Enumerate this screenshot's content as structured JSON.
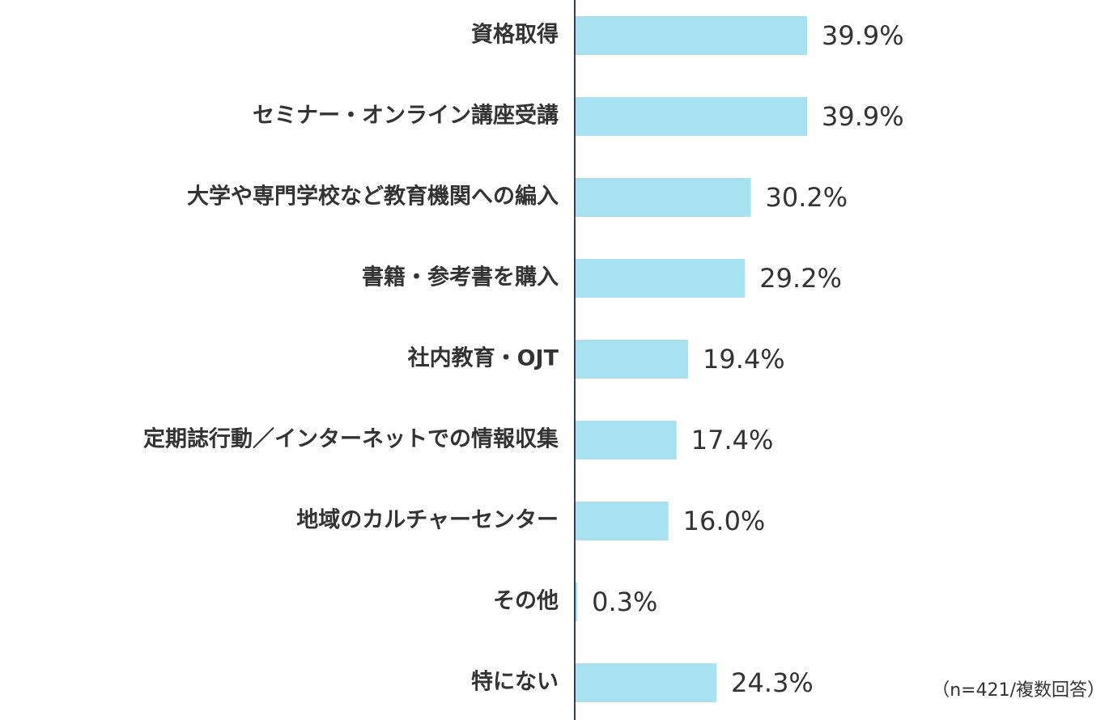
{
  "chart_data": {
    "type": "bar",
    "orientation": "horizontal",
    "categories": [
      "資格取得",
      "セミナー・オンライン講座受講",
      "大学や専門学校など教育機関への編入",
      "書籍・参考書を購入",
      "社内教育・OJT",
      "定期誌行動／インターネットでの情報収集",
      "地域のカルチャーセンター",
      "その他",
      "特にない"
    ],
    "values": [
      39.9,
      39.9,
      30.2,
      29.2,
      19.4,
      17.4,
      16.0,
      0.3,
      24.3
    ],
    "value_labels": [
      "39.9%",
      "39.9%",
      "30.2%",
      "29.2%",
      "19.4%",
      "17.4%",
      "16.0%",
      "0.3%",
      "24.3%"
    ],
    "color": "#a8e2f0",
    "annotation": "（n=421/複数回答）"
  }
}
